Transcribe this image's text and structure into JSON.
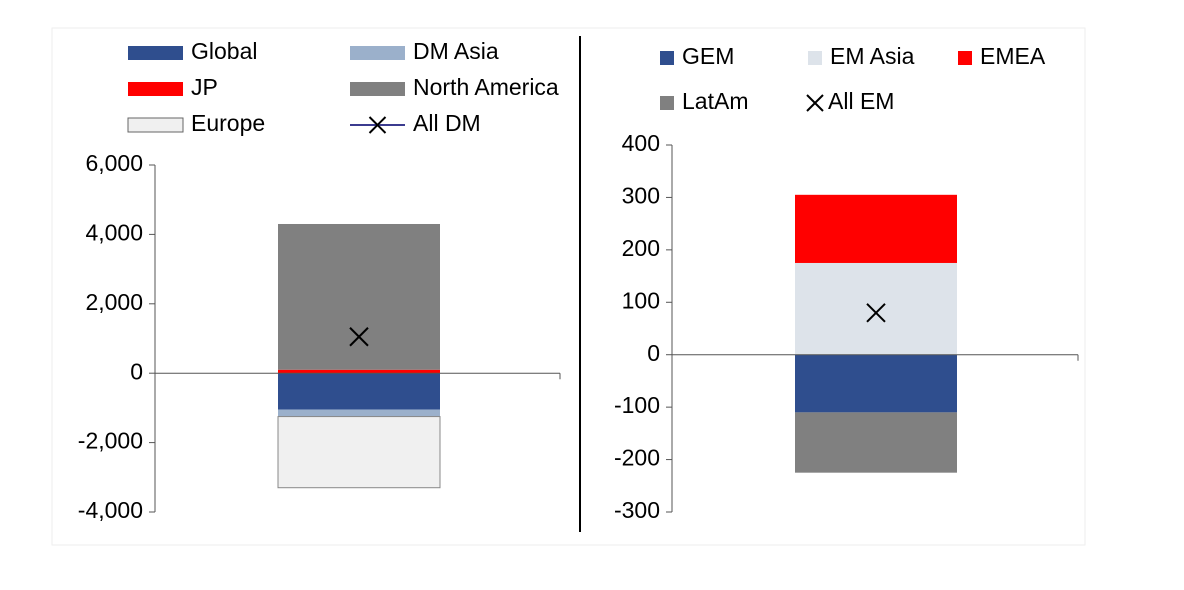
{
  "chart_data": [
    {
      "type": "bar",
      "categories": [
        null
      ],
      "ylim": [
        -4000,
        6000
      ],
      "yticks": [
        {
          "value": -4000,
          "label": "-4,000"
        },
        {
          "value": -2000,
          "label": "-2,000"
        },
        0,
        {
          "value": 2000,
          "label": "2,000"
        },
        {
          "value": 4000,
          "label": "4,000"
        },
        {
          "value": 6000,
          "label": "6,000"
        }
      ],
      "series": [
        {
          "name": "Global",
          "color": "#2f4e8e",
          "values": [
            -1050
          ]
        },
        {
          "name": "DM Asia",
          "color": "#9bb0cb",
          "values": [
            -200
          ]
        },
        {
          "name": "JP",
          "color": "#ff0000",
          "values": [
            100
          ]
        },
        {
          "name": "North America",
          "color": "#808080",
          "values": [
            4200
          ]
        },
        {
          "name": "Europe",
          "color": "#f0f0f0",
          "values": [
            -2050
          ]
        },
        {
          "name": "All DM",
          "type": "line",
          "color": "#3b3b8f",
          "values": [
            1050
          ]
        }
      ]
    },
    {
      "type": "bar",
      "categories": [
        null
      ],
      "ylim": [
        -300,
        400
      ],
      "yticks": [
        -300,
        -200,
        -100,
        0,
        100,
        200,
        300,
        400
      ],
      "series": [
        {
          "name": "GEM",
          "color": "#2f4e8e",
          "values": [
            -110
          ]
        },
        {
          "name": "EM Asia",
          "color": "#dde3ea",
          "values": [
            175
          ]
        },
        {
          "name": "EMEA",
          "color": "#ff0000",
          "values": [
            130
          ]
        },
        {
          "name": "LatAm",
          "color": "#808080",
          "values": [
            -115
          ]
        },
        {
          "name": "All EM",
          "type": "scatter",
          "color": "#000000",
          "values": [
            80
          ]
        }
      ]
    }
  ]
}
